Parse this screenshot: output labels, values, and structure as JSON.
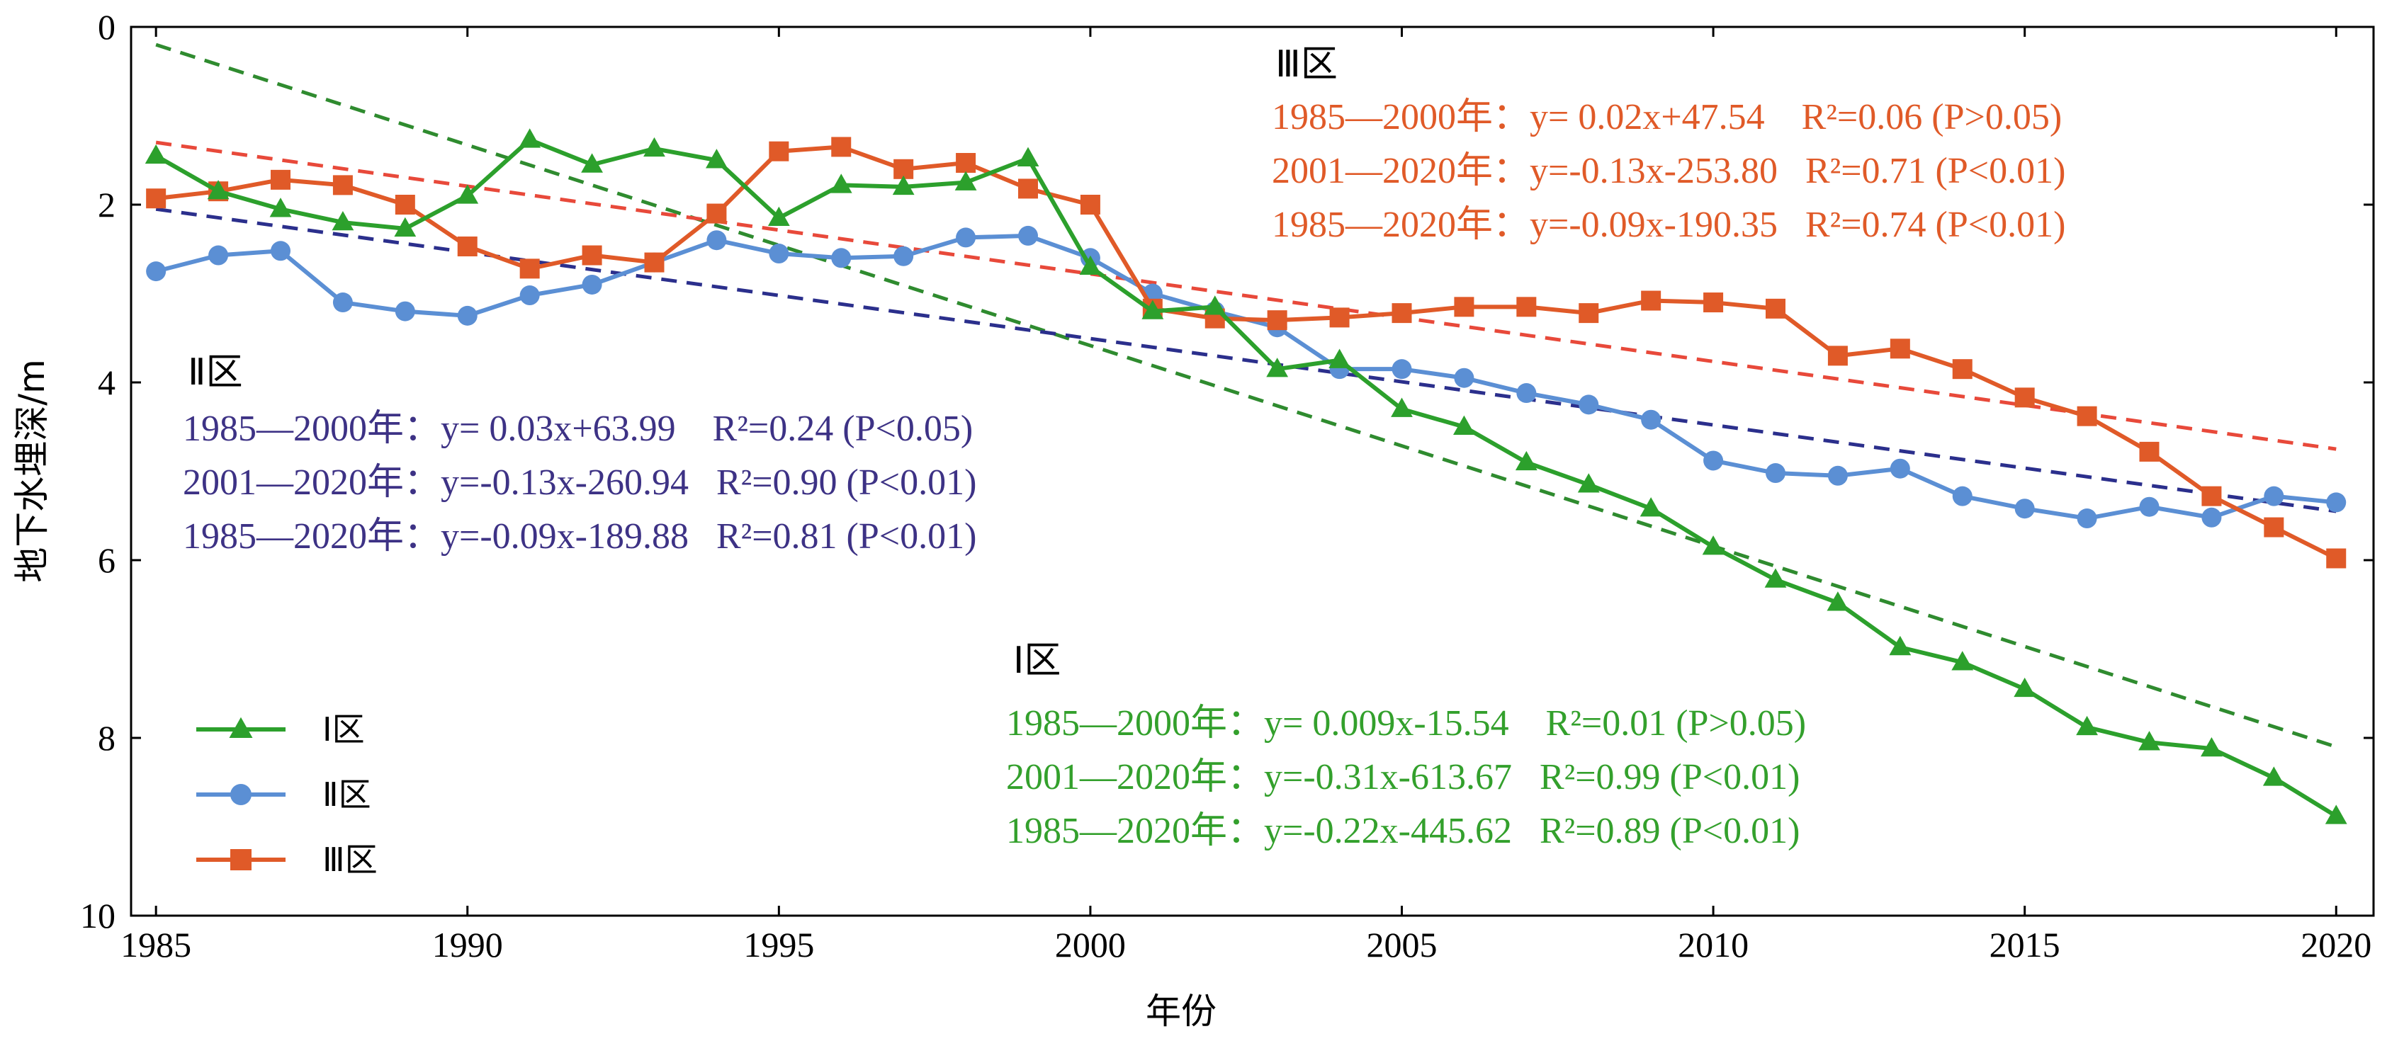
{
  "chart_data": {
    "type": "line",
    "xlabel": "年份",
    "ylabel": "地下水埋深/m",
    "xlim": [
      1984.6,
      2020.6
    ],
    "ylim": [
      0,
      10
    ],
    "y_inverted": true,
    "grid": false,
    "legend_position": "bottom-left",
    "x_ticks": [
      "1985",
      "1990",
      "1995",
      "2000",
      "2005",
      "2010",
      "2015",
      "2020"
    ],
    "y_ticks": [
      "0",
      "2",
      "4",
      "6",
      "8",
      "10"
    ],
    "x": [
      1985,
      1986,
      1987,
      1988,
      1989,
      1990,
      1991,
      1992,
      1993,
      1994,
      1995,
      1996,
      1997,
      1998,
      1999,
      2000,
      2001,
      2002,
      2003,
      2004,
      2005,
      2006,
      2007,
      2008,
      2009,
      2010,
      2011,
      2012,
      2013,
      2014,
      2015,
      2016,
      2017,
      2018,
      2019,
      2020
    ],
    "series": [
      {
        "name": "Ⅰ区",
        "color": "#2ca02c",
        "marker": "triangle",
        "values": [
          1.45,
          1.85,
          2.05,
          2.2,
          2.27,
          1.9,
          1.27,
          1.55,
          1.37,
          1.5,
          2.15,
          1.78,
          1.8,
          1.75,
          1.48,
          2.7,
          3.2,
          3.15,
          3.85,
          3.75,
          4.3,
          4.5,
          4.9,
          5.15,
          5.42,
          5.85,
          6.22,
          6.48,
          6.98,
          7.15,
          7.45,
          7.88,
          8.05,
          8.12,
          8.45,
          8.88
        ]
      },
      {
        "name": "Ⅱ区",
        "color": "#5b8fd4",
        "marker": "circle",
        "values": [
          2.75,
          2.57,
          2.52,
          3.1,
          3.2,
          3.25,
          3.02,
          2.9,
          2.65,
          2.4,
          2.55,
          2.6,
          2.58,
          2.37,
          2.35,
          2.6,
          3.0,
          3.2,
          3.38,
          3.85,
          3.85,
          3.95,
          4.12,
          4.25,
          4.42,
          4.88,
          5.02,
          5.05,
          4.97,
          5.28,
          5.42,
          5.53,
          5.4,
          5.52,
          5.28,
          5.35
        ]
      },
      {
        "name": "Ⅲ区",
        "color": "#e05a28",
        "marker": "square",
        "values": [
          1.93,
          1.85,
          1.72,
          1.78,
          2.0,
          2.47,
          2.72,
          2.57,
          2.65,
          2.1,
          1.4,
          1.35,
          1.6,
          1.53,
          1.82,
          2.0,
          3.17,
          3.28,
          3.3,
          3.27,
          3.22,
          3.15,
          3.15,
          3.22,
          3.08,
          3.1,
          3.17,
          3.7,
          3.62,
          3.85,
          4.17,
          4.38,
          4.78,
          5.28,
          5.63,
          5.98
        ]
      }
    ],
    "trend_lines": [
      {
        "color": "#2f8b2f",
        "start": [
          1985,
          0.2
        ],
        "end": [
          2020,
          8.1
        ]
      },
      {
        "color": "#2b2f8c",
        "start": [
          1985,
          2.05
        ],
        "end": [
          2020,
          5.45
        ]
      },
      {
        "color": "#e8493a",
        "start": [
          1985,
          1.3
        ],
        "end": [
          2020,
          4.75
        ]
      }
    ],
    "annotations": [
      {
        "title": "Ⅲ区",
        "color": "#e05a28",
        "lines": [
          "1985—2000年：y= 0.02x+47.54    R²=0.06 (P>0.05)",
          "2001—2020年：y=-0.13x-253.80   R²=0.71 (P<0.01)",
          "1985—2020年：y=-0.09x-190.35   R²=0.74 (P<0.01)"
        ]
      },
      {
        "title": "Ⅱ区",
        "color": "#3d3285",
        "lines": [
          "1985—2000年：y= 0.03x+63.99    R²=0.24 (P<0.05)",
          "2001—2020年：y=-0.13x-260.94   R²=0.90 (P<0.01)",
          "1985—2020年：y=-0.09x-189.88   R²=0.81 (P<0.01)"
        ]
      },
      {
        "title": "Ⅰ区",
        "color": "#33a02c",
        "lines": [
          "1985—2000年：y= 0.009x-15.54    R²=0.01 (P>0.05)",
          "2001—2020年：y=-0.31x-613.67   R²=0.99 (P<0.01)",
          "1985—2020年：y=-0.22x-445.62   R²=0.89 (P<0.01)"
        ]
      }
    ]
  }
}
